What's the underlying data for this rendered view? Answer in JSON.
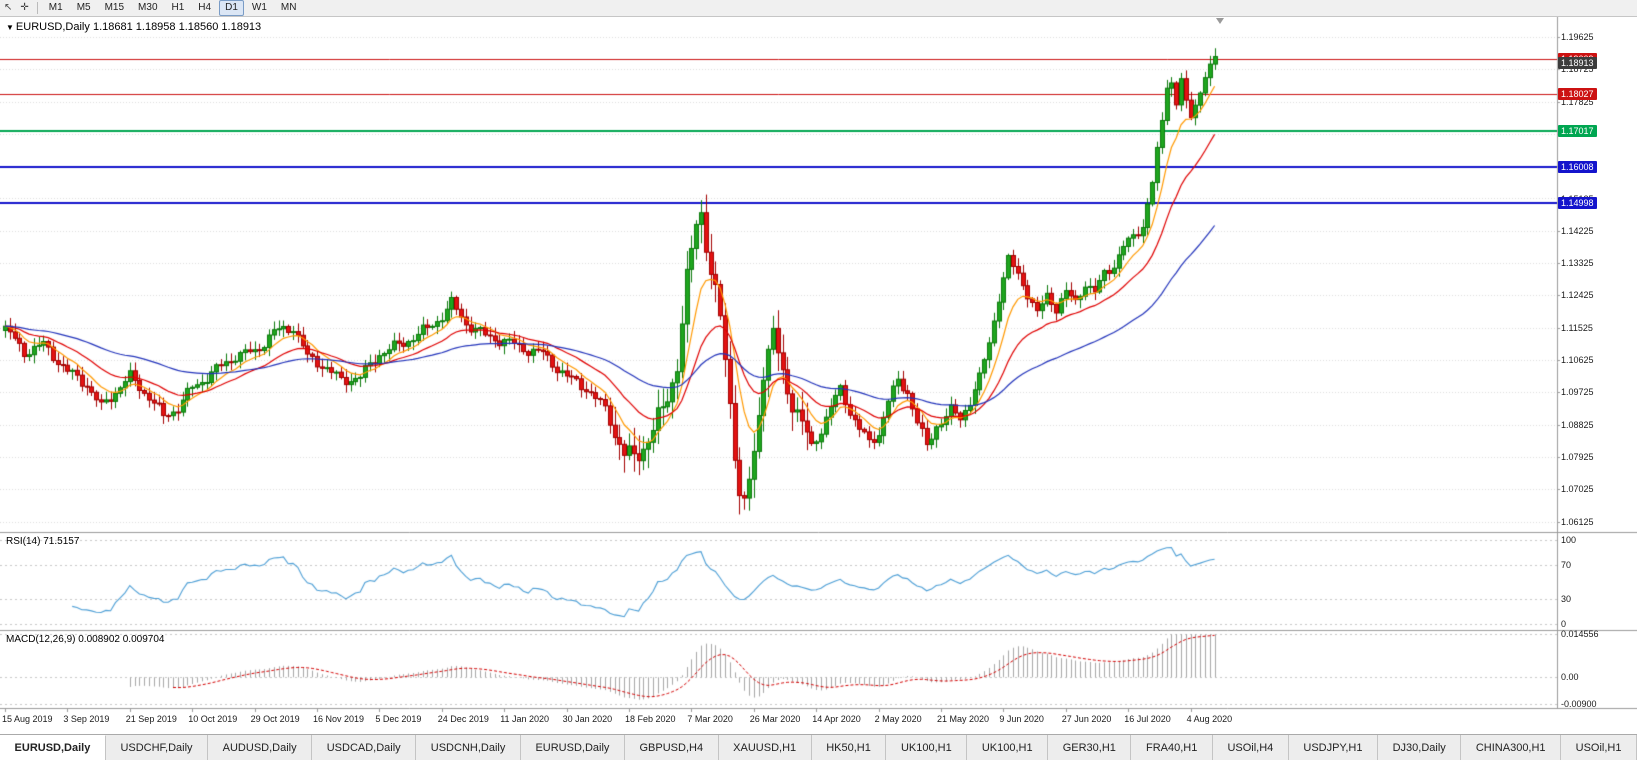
{
  "toolbar": {
    "pointer_icon": "↖",
    "crosshair_icon": "✛",
    "timeframes": [
      "M1",
      "M5",
      "M15",
      "M30",
      "H1",
      "H4",
      "D1",
      "W1",
      "MN"
    ],
    "active_timeframe": "D1"
  },
  "chart": {
    "symbol": "EURUSD,Daily",
    "ohlc": "1.18681 1.18958 1.18560 1.18913",
    "dropdown_icon": "▼"
  },
  "rsi": {
    "label": "RSI(14) 71.5157",
    "line_color": "#4d9fd6",
    "ticks": [
      {
        "label": "100",
        "value": 100
      },
      {
        "label": "70",
        "value": 70
      },
      {
        "label": "30",
        "value": 30
      },
      {
        "label": "0",
        "value": 0
      }
    ]
  },
  "macd": {
    "label": "MACD(12,26,9) 0.008902 0.009704",
    "histogram_color": "#a8a8a8",
    "signal_color": "#d40000",
    "ticks": [
      {
        "label": "0.014556",
        "value": 0.014556
      },
      {
        "label": "0.00",
        "value": 0
      },
      {
        "label": "-0.00900",
        "value": -0.009
      }
    ]
  },
  "price_axis": {
    "ticks": [
      "1.19625",
      "1.18725",
      "1.17825",
      "1.16925",
      "1.16025",
      "1.15125",
      "1.14225",
      "1.13325",
      "1.12425",
      "1.11525",
      "1.10625",
      "1.09725",
      "1.08825",
      "1.07925",
      "1.07025",
      "1.06125"
    ],
    "badges": [
      {
        "label": "1.19009",
        "price": 1.19009,
        "bg": "#cc1111"
      },
      {
        "label": "1.18913",
        "price": 1.18913,
        "bg": "#3c3c3c"
      },
      {
        "label": "1.18027",
        "price": 1.18027,
        "bg": "#cc1111"
      },
      {
        "label": "1.17017",
        "price": 1.17017,
        "bg": "#00a651"
      },
      {
        "label": "1.16008",
        "price": 1.16008,
        "bg": "#1414cc"
      },
      {
        "label": "1.14998",
        "price": 1.14998,
        "bg": "#1414cc"
      }
    ]
  },
  "dates": [
    {
      "label": "15 Aug 2019",
      "index": 0
    },
    {
      "label": "3 Sep 2019",
      "index": 13
    },
    {
      "label": "21 Sep 2019",
      "index": 26
    },
    {
      "label": "10 Oct 2019",
      "index": 39
    },
    {
      "label": "29 Oct 2019",
      "index": 52
    },
    {
      "label": "16 Nov 2019",
      "index": 65
    },
    {
      "label": "5 Dec 2019",
      "index": 78
    },
    {
      "label": "24 Dec 2019",
      "index": 91
    },
    {
      "label": "11 Jan 2020",
      "index": 104
    },
    {
      "label": "30 Jan 2020",
      "index": 117
    },
    {
      "label": "18 Feb 2020",
      "index": 130
    },
    {
      "label": "7 Mar 2020",
      "index": 143
    },
    {
      "label": "26 Mar 2020",
      "index": 156
    },
    {
      "label": "14 Apr 2020",
      "index": 169
    },
    {
      "label": "2 May 2020",
      "index": 182
    },
    {
      "label": "21 May 2020",
      "index": 195
    },
    {
      "label": "9 Jun 2020",
      "index": 208
    },
    {
      "label": "27 Jun 2020",
      "index": 221
    },
    {
      "label": "16 Jul 2020",
      "index": 234
    },
    {
      "label": "4 Aug 2020",
      "index": 247
    }
  ],
  "tabs": {
    "active_index": 0,
    "items": [
      "EURUSD,Daily",
      "USDCHF,Daily",
      "AUDUSD,Daily",
      "USDCAD,Daily",
      "USDCNH,Daily",
      "EURUSD,Daily",
      "GBPUSD,H4",
      "XAUUSD,H1",
      "HK50,H1",
      "UK100,H1",
      "UK100,H1",
      "GER30,H1",
      "FRA40,H1",
      "USOil,H4",
      "USDJPY,H1",
      "DJ30,Daily",
      "CHINA300,H1",
      "USOil,H1"
    ]
  },
  "chart_data": {
    "type": "candlestick",
    "symbol": "EURUSD",
    "timeframe": "Daily",
    "open": 1.18681,
    "high": 1.18958,
    "low": 1.1856,
    "close": 1.18913,
    "candle_count": 253,
    "price_axis": {
      "top": 1.19625,
      "step": 0.009,
      "tick_count": 16
    },
    "close_keyframes": [
      [
        0,
        1.115
      ],
      [
        4,
        1.1085
      ],
      [
        8,
        1.1105
      ],
      [
        13,
        1.103
      ],
      [
        17,
        1.0995
      ],
      [
        20,
        1.093
      ],
      [
        24,
        1.099
      ],
      [
        26,
        1.1015
      ],
      [
        30,
        1.096
      ],
      [
        33,
        1.0905
      ],
      [
        36,
        1.093
      ],
      [
        39,
        1.0985
      ],
      [
        44,
        1.1035
      ],
      [
        48,
        1.1075
      ],
      [
        52,
        1.1085
      ],
      [
        56,
        1.114
      ],
      [
        60,
        1.1155
      ],
      [
        63,
        1.107
      ],
      [
        66,
        1.105
      ],
      [
        70,
        1.1005
      ],
      [
        74,
        1.1015
      ],
      [
        78,
        1.108
      ],
      [
        83,
        1.111
      ],
      [
        88,
        1.115
      ],
      [
        91,
        1.1185
      ],
      [
        93,
        1.122
      ],
      [
        96,
        1.1165
      ],
      [
        100,
        1.113
      ],
      [
        104,
        1.1115
      ],
      [
        108,
        1.1095
      ],
      [
        112,
        1.108
      ],
      [
        117,
        1.1015
      ],
      [
        121,
        1.0985
      ],
      [
        125,
        1.0925
      ],
      [
        129,
        1.08
      ],
      [
        131,
        1.0785
      ],
      [
        134,
        1.0845
      ],
      [
        137,
        1.092
      ],
      [
        140,
        1.105
      ],
      [
        142,
        1.128
      ],
      [
        144,
        1.145
      ],
      [
        145,
        1.148
      ],
      [
        147,
        1.13
      ],
      [
        149,
        1.118
      ],
      [
        151,
        1.095
      ],
      [
        153,
        1.068
      ],
      [
        154,
        1.065
      ],
      [
        156,
        1.08
      ],
      [
        158,
        1.104
      ],
      [
        160,
        1.113
      ],
      [
        162,
        1.102
      ],
      [
        164,
        1.095
      ],
      [
        166,
        1.088
      ],
      [
        168,
        1.082
      ],
      [
        170,
        1.087
      ],
      [
        172,
        1.093
      ],
      [
        174,
        1.098
      ],
      [
        176,
        1.092
      ],
      [
        178,
        1.087
      ],
      [
        180,
        1.083
      ],
      [
        182,
        1.086
      ],
      [
        184,
        1.095
      ],
      [
        186,
        1.1
      ],
      [
        188,
        1.0975
      ],
      [
        190,
        1.089
      ],
      [
        192,
        1.082
      ],
      [
        194,
        1.088
      ],
      [
        197,
        1.092
      ],
      [
        199,
        1.09
      ],
      [
        201,
        1.095
      ],
      [
        203,
        1.101
      ],
      [
        205,
        1.111
      ],
      [
        207,
        1.124
      ],
      [
        209,
        1.134
      ],
      [
        211,
        1.13
      ],
      [
        213,
        1.125
      ],
      [
        215,
        1.119
      ],
      [
        217,
        1.124
      ],
      [
        219,
        1.121
      ],
      [
        221,
        1.125
      ],
      [
        223,
        1.122
      ],
      [
        225,
        1.128
      ],
      [
        227,
        1.125
      ],
      [
        229,
        1.13
      ],
      [
        231,
        1.133
      ],
      [
        233,
        1.138
      ],
      [
        235,
        1.14
      ],
      [
        237,
        1.144
      ],
      [
        239,
        1.156
      ],
      [
        240,
        1.164
      ],
      [
        241,
        1.172
      ],
      [
        242,
        1.183
      ],
      [
        243,
        1.184
      ],
      [
        244,
        1.178
      ],
      [
        245,
        1.185
      ],
      [
        246,
        1.177
      ],
      [
        247,
        1.173
      ],
      [
        248,
        1.178
      ],
      [
        249,
        1.181
      ],
      [
        250,
        1.186
      ],
      [
        251,
        1.189
      ],
      [
        252,
        1.1891
      ]
    ],
    "horizontal_lines": [
      {
        "price": 1.19009,
        "color": "#cc1111",
        "width": 1
      },
      {
        "price": 1.18027,
        "color": "#cc1111",
        "width": 1
      },
      {
        "price": 1.17017,
        "color": "#00a651",
        "width": 2
      },
      {
        "price": 1.16008,
        "color": "#1414cc",
        "width": 2
      },
      {
        "price": 1.14998,
        "color": "#1414cc",
        "width": 2
      }
    ],
    "moving_averages": [
      {
        "period": 8,
        "color": "#ff9900"
      },
      {
        "period": 20,
        "color": "#e00000"
      },
      {
        "period": 55,
        "color": "#2233bb"
      }
    ],
    "candle_colors": {
      "up_fill": "#1fa51f",
      "up_stroke": "#0b7a0b",
      "down_fill": "#e31212",
      "down_stroke": "#a30000"
    },
    "indicators": {
      "rsi_period": 14,
      "rsi_value": 71.5157,
      "macd_params": [
        12,
        26,
        9
      ],
      "macd_value": 0.008902,
      "macd_signal": 0.009704
    }
  }
}
